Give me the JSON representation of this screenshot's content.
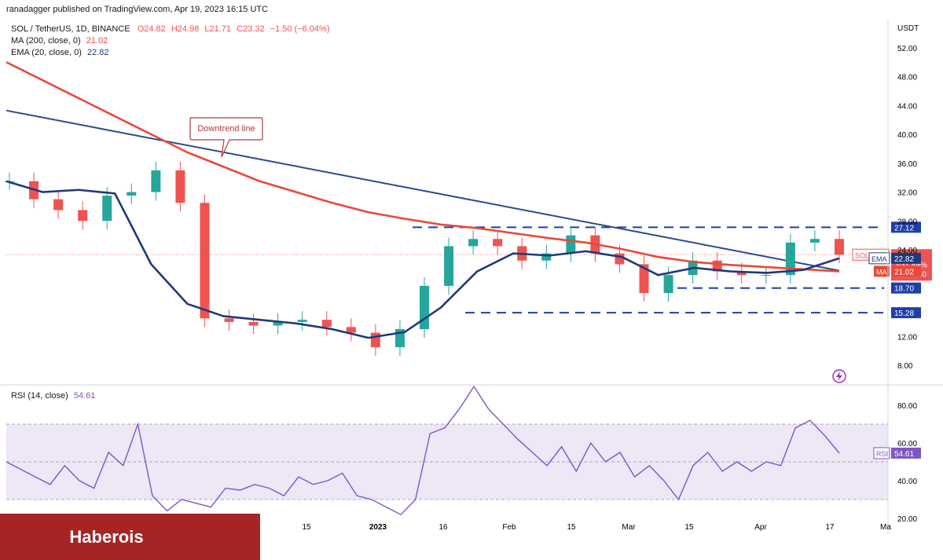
{
  "header": {
    "publisher_text": "ranadagger published on TradingView.com, Apr 19, 2023 16:15 UTC"
  },
  "legend": {
    "symbol": "SOL / TetherUS, 1D, BINANCE",
    "ohlc": {
      "o": "O24.82",
      "h": "H24.98",
      "l": "L21.71",
      "c": "C23.32",
      "change": "−1.50 (−6.04%)"
    },
    "ma_label": "MA (200, close, 0)",
    "ma_value": "21.02",
    "ema_label": "EMA (20, close, 0)",
    "ema_value": "22.82",
    "rsi_label": "RSI (14, close)",
    "rsi_value": "54.61"
  },
  "annotation": {
    "downtrend": "Downtrend line"
  },
  "footer": {
    "brand": "Haberois"
  },
  "colors": {
    "up": "#26a69a",
    "down": "#ef5350",
    "ma": "#e8493b",
    "ema": "#1f3a7a",
    "trendline": "#2a4a8c",
    "rsi": "#7e57c2",
    "rsi_band": "#ede7f6",
    "grid": "#e0e3eb",
    "brand_bg": "#a52525"
  },
  "chart_data": [
    {
      "type": "candlestick",
      "title": "SOL / TetherUS, 1D, BINANCE",
      "y_unit": "USDT",
      "ylim": [
        5.5,
        56
      ],
      "y_ticks": [
        8,
        12,
        16,
        20,
        24,
        28,
        32,
        36,
        40,
        44,
        48,
        52
      ],
      "y_tick_labels": [
        "8.00",
        "12.00",
        "",
        "",
        "24.00",
        "28.00",
        "32.00",
        "36.00",
        "40.00",
        "44.00",
        "48.00",
        "52.00"
      ],
      "x_tick_labels": [
        "15",
        "2023",
        "16",
        "Feb",
        "15",
        "Mar",
        "15",
        "Apr",
        "17",
        "Ma"
      ],
      "ma200": [
        50.0,
        47.5,
        45.0,
        42.5,
        40.0,
        37.5,
        35.5,
        33.5,
        32.0,
        30.5,
        29.2,
        28.3,
        27.5,
        27.0,
        26.3,
        25.6,
        25.0,
        24.1,
        23.0,
        22.3,
        21.9,
        21.6,
        21.3,
        21.0
      ],
      "ema20": [
        33.5,
        32.0,
        32.3,
        31.8,
        22.0,
        16.5,
        14.8,
        14.3,
        13.8,
        13.0,
        11.8,
        12.6,
        16.0,
        21.0,
        23.5,
        23.2,
        23.8,
        23.0,
        20.5,
        21.5,
        21.0,
        20.8,
        21.2,
        22.82
      ],
      "candles_close": [
        33.5,
        31.0,
        29.5,
        28.0,
        31.5,
        32.0,
        35.0,
        30.5,
        14.5,
        14.0,
        13.5,
        14.0,
        14.3,
        13.3,
        12.5,
        10.5,
        13.0,
        19.0,
        24.5,
        25.5,
        24.5,
        22.5,
        23.5,
        26.0,
        23.5,
        22.0,
        18.0,
        20.5,
        22.5,
        21.0,
        20.5,
        20.5,
        25.0,
        25.5,
        23.32
      ],
      "current_price": "23.32",
      "current_change": "−31.49%",
      "countdown": "07:44:40",
      "symbol_badge": "SOLUSDT",
      "ema_badge": "22.82",
      "ma_badge": "21.02",
      "levels": [
        {
          "label": "27.12",
          "value": 27.12
        },
        {
          "label": "18.70",
          "value": 18.7
        },
        {
          "label": "15.28",
          "value": 15.28
        }
      ],
      "downtrend_line": {
        "start": 43.3,
        "end": 21.1
      }
    },
    {
      "type": "line",
      "title": "RSI (14, close)",
      "ylim": [
        20,
        90
      ],
      "y_ticks": [
        20,
        40,
        60,
        80
      ],
      "y_tick_labels": [
        "20.00",
        "40.00",
        "60.00",
        "80.00"
      ],
      "band": [
        30,
        70
      ],
      "midline": 50,
      "values": [
        50,
        46,
        42,
        38,
        48,
        40,
        36,
        55,
        48,
        70,
        32,
        24,
        30,
        28,
        26,
        36,
        35,
        38,
        36,
        32,
        42,
        38,
        40,
        44,
        32,
        30,
        26,
        22,
        30,
        65,
        68,
        78,
        90,
        78,
        70,
        62,
        55,
        48,
        58,
        45,
        60,
        50,
        55,
        42,
        48,
        40,
        30,
        48,
        55,
        45,
        50,
        45,
        50,
        48,
        68,
        72,
        64,
        54.61
      ],
      "current": "54.61",
      "badge": "RSI"
    }
  ]
}
